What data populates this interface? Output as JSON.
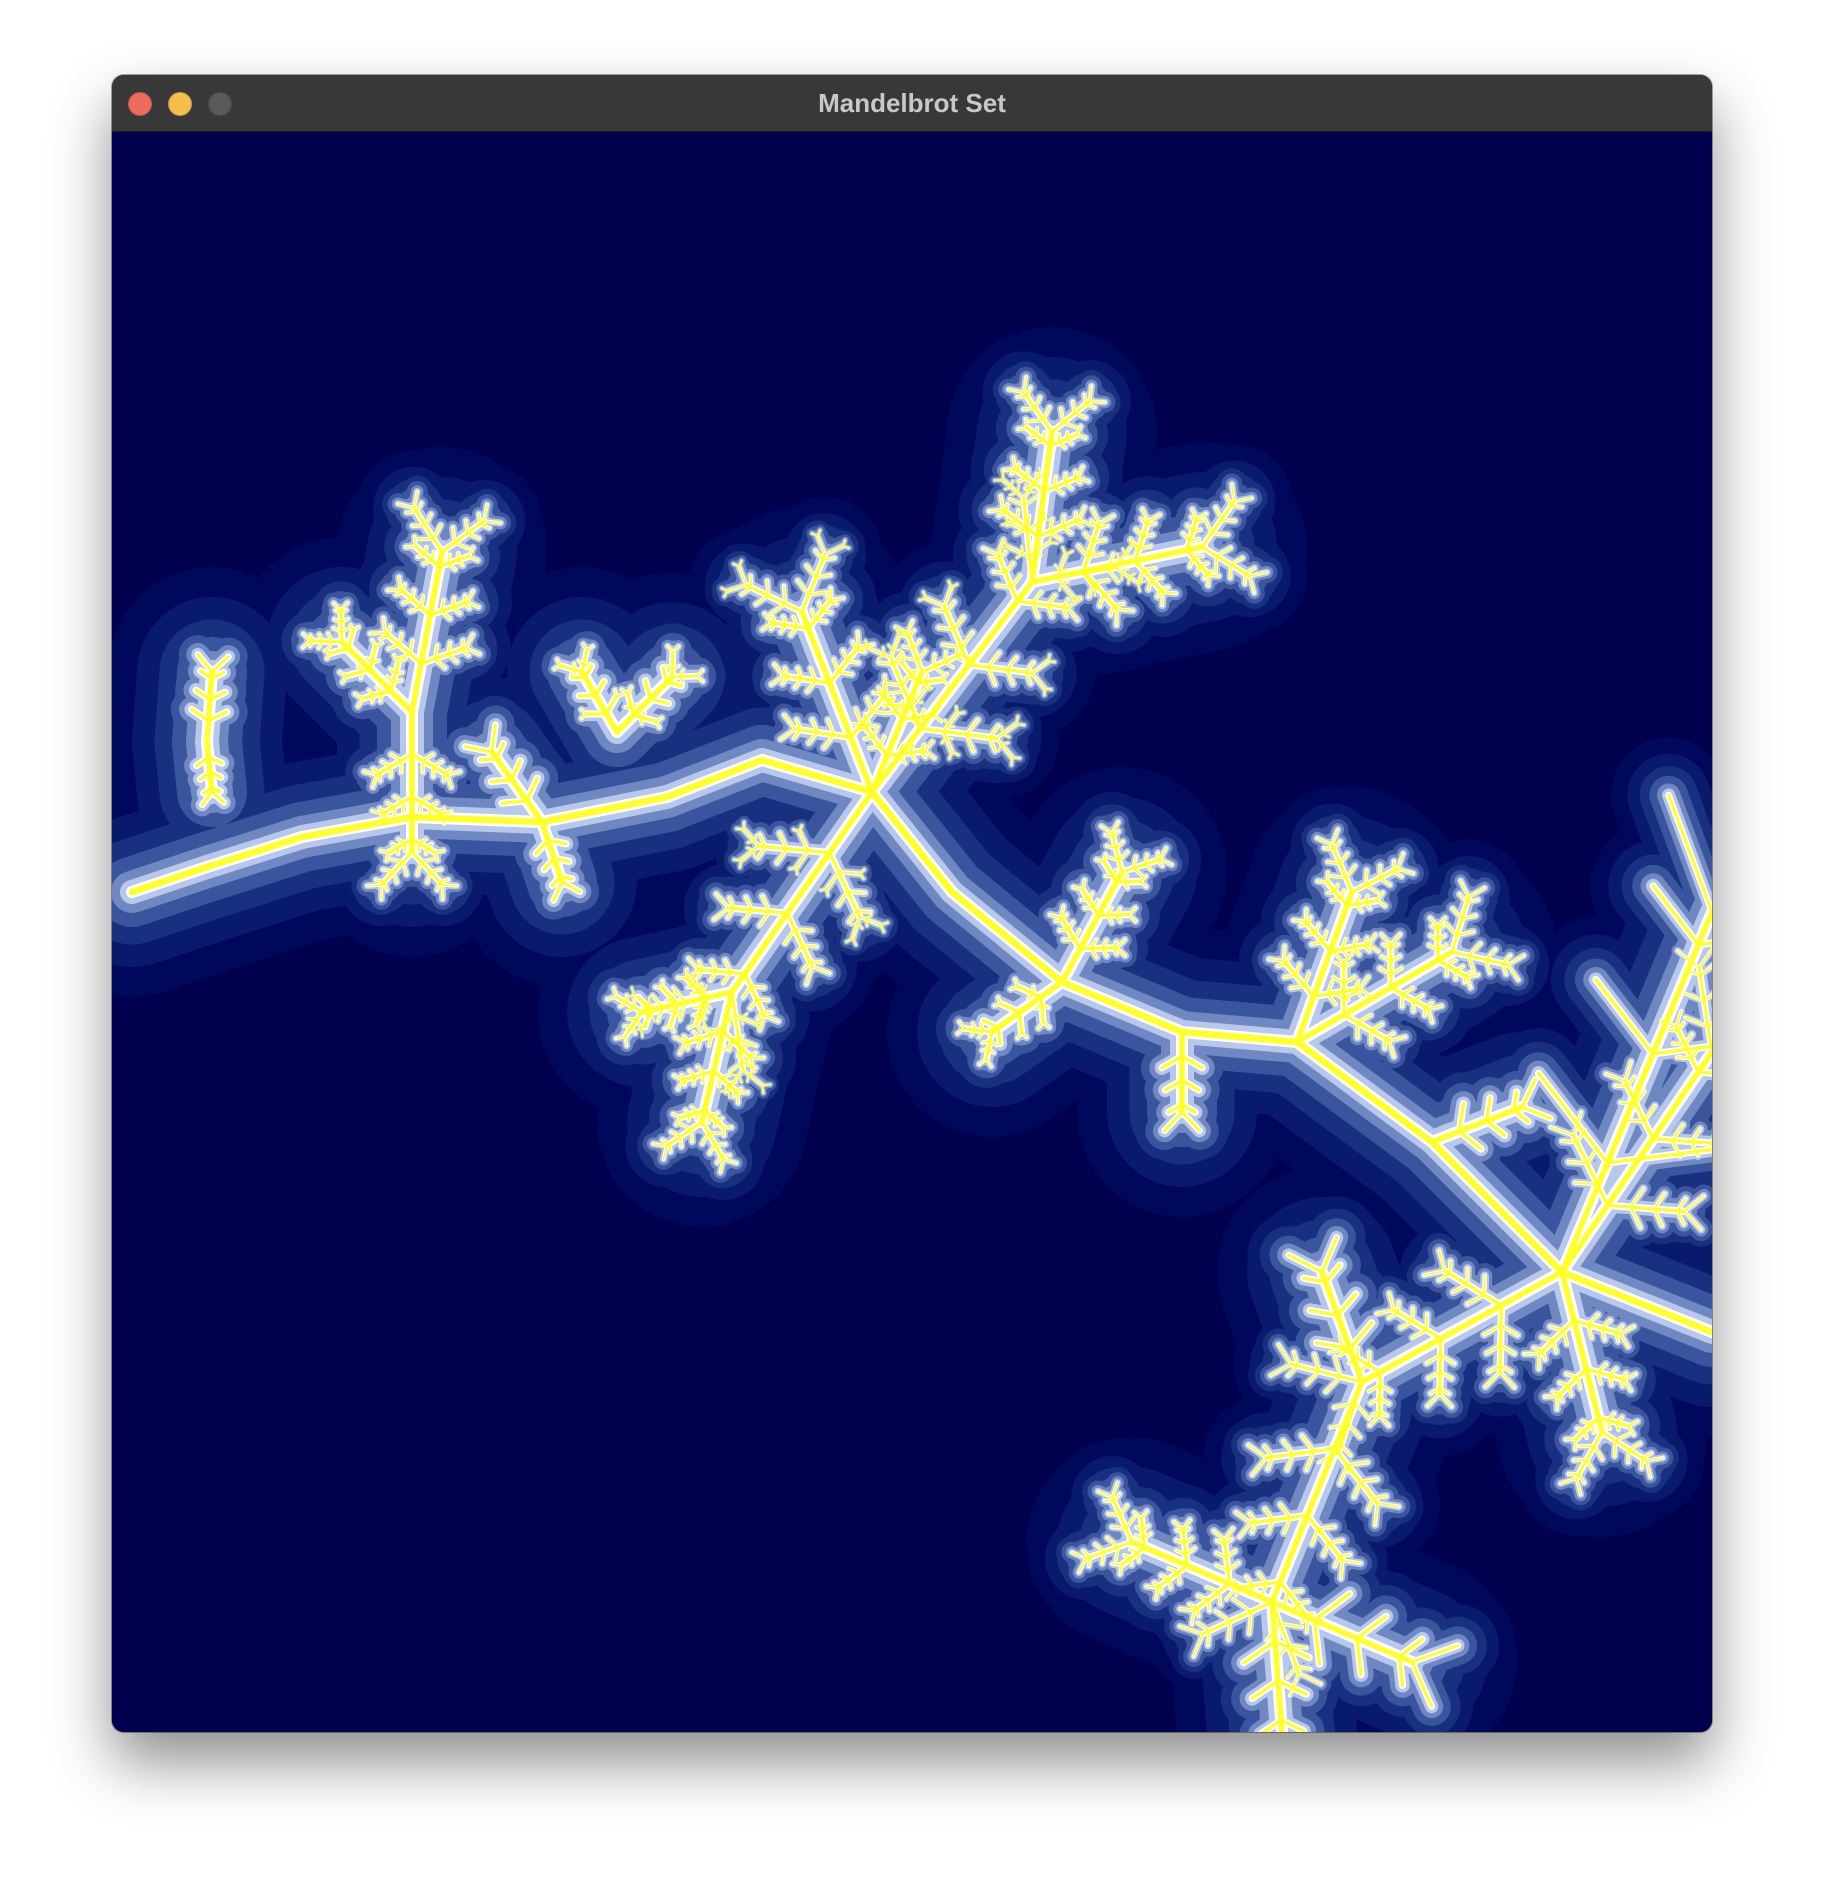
{
  "window": {
    "title": "Mandelbrot Set"
  },
  "traffic_lights": {
    "close": {
      "name": "close-button",
      "color": "#ed6a5e"
    },
    "minimize": {
      "name": "minimize-button",
      "color": "#f5bf4f"
    },
    "zoom": {
      "name": "zoom-button",
      "color": "#5a5a5a"
    }
  },
  "colors": {
    "title_text": "#c8c8c8",
    "titlebar_bg": "#383838",
    "background_outer": "#00004f",
    "band_levels": [
      "#000a5e",
      "#0b1d6e",
      "#1c3585",
      "#3a559e",
      "#6f88c2",
      "#b7c8ec",
      "#ffffff"
    ],
    "fractal_core": "#ffff2a"
  },
  "fractal": {
    "type": "julia-dendrite",
    "palette": "blue-to-yellow"
  }
}
